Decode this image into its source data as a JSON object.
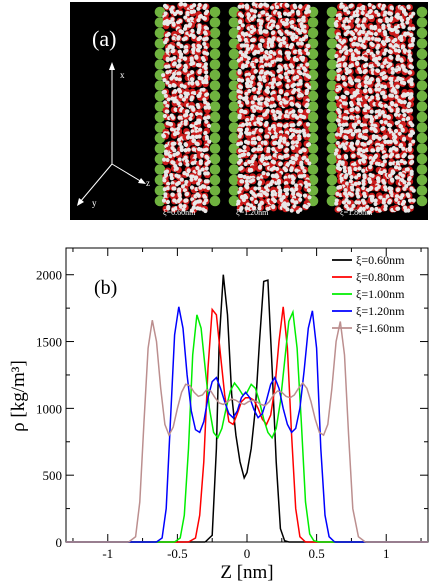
{
  "panel_a": {
    "panel_label": "(a)",
    "axes": {
      "x": "x",
      "y": "y",
      "z": "z"
    },
    "snapshots": [
      {
        "caption": "ξ=0.60nm"
      },
      {
        "caption": "ξ=1.20nm"
      },
      {
        "caption": "ξ=1.80nm"
      }
    ]
  },
  "colors": {
    "wall_atom": "#6fb23f",
    "oxygen": "#cc1b1b",
    "hydrogen": "#e8e8e8",
    "background_a": "#000000"
  },
  "chart_data": {
    "type": "line",
    "panel_label": "(b)",
    "xlabel": "Z [nm]",
    "ylabel": "ρ  [kg/m³]",
    "xlim": [
      -1.3,
      1.3
    ],
    "ylim": [
      0,
      2200
    ],
    "xticks": [
      -1,
      -0.5,
      0,
      0.5,
      1
    ],
    "xtick_labels": [
      "-1",
      "-0.5",
      "0",
      "0.5",
      "1"
    ],
    "yticks": [
      0,
      500,
      1000,
      1500,
      2000
    ],
    "ytick_labels": [
      "0",
      "500",
      "1000",
      "1500",
      "2000"
    ],
    "legend": "top-right",
    "series": [
      {
        "name": "ξ=0.60nm",
        "color": "#000000",
        "x": [
          -0.3,
          -0.25,
          -0.22,
          -0.2,
          -0.17,
          -0.14,
          -0.11,
          -0.08,
          -0.05,
          -0.02,
          0.0,
          0.03,
          0.06,
          0.09,
          0.12,
          0.15,
          0.18,
          0.21,
          0.24,
          0.27,
          0.3
        ],
        "y": [
          0,
          50,
          700,
          1500,
          2000,
          1700,
          1100,
          800,
          600,
          480,
          520,
          700,
          1000,
          1500,
          1950,
          1960,
          1300,
          600,
          100,
          10,
          0
        ]
      },
      {
        "name": "ξ=0.80nm",
        "color": "#ff0000",
        "x": [
          -0.42,
          -0.37,
          -0.34,
          -0.31,
          -0.28,
          -0.25,
          -0.22,
          -0.19,
          -0.16,
          -0.13,
          -0.1,
          -0.07,
          -0.04,
          -0.01,
          0.02,
          0.05,
          0.08,
          0.11,
          0.14,
          0.17,
          0.2,
          0.23,
          0.26,
          0.29,
          0.32,
          0.35,
          0.38,
          0.42
        ],
        "y": [
          0,
          30,
          200,
          600,
          1300,
          1740,
          1700,
          1400,
          1100,
          900,
          880,
          960,
          1050,
          1080,
          1080,
          1060,
          1000,
          920,
          880,
          950,
          1150,
          1500,
          1760,
          1450,
          800,
          250,
          40,
          0
        ]
      },
      {
        "name": "ξ=1.00nm",
        "color": "#00ee00",
        "x": [
          -0.52,
          -0.48,
          -0.45,
          -0.42,
          -0.39,
          -0.36,
          -0.33,
          -0.3,
          -0.27,
          -0.24,
          -0.21,
          -0.18,
          -0.15,
          -0.12,
          -0.09,
          -0.06,
          -0.03,
          0.0,
          0.03,
          0.06,
          0.09,
          0.12,
          0.15,
          0.18,
          0.21,
          0.24,
          0.27,
          0.3,
          0.33,
          0.36,
          0.39,
          0.42,
          0.45,
          0.48,
          0.52
        ],
        "y": [
          0,
          30,
          200,
          700,
          1400,
          1700,
          1600,
          1300,
          1000,
          820,
          780,
          850,
          1000,
          1130,
          1190,
          1150,
          1100,
          1120,
          1180,
          1150,
          1050,
          920,
          820,
          780,
          850,
          1050,
          1350,
          1650,
          1720,
          1450,
          900,
          300,
          60,
          10,
          0
        ]
      },
      {
        "name": "ξ=1.20nm",
        "color": "#0000ff",
        "x": [
          -0.65,
          -0.61,
          -0.58,
          -0.55,
          -0.52,
          -0.49,
          -0.46,
          -0.43,
          -0.4,
          -0.37,
          -0.34,
          -0.31,
          -0.28,
          -0.25,
          -0.22,
          -0.19,
          -0.16,
          -0.13,
          -0.1,
          -0.07,
          -0.04,
          -0.01,
          0.02,
          0.05,
          0.08,
          0.11,
          0.14,
          0.17,
          0.2,
          0.23,
          0.26,
          0.29,
          0.32,
          0.35,
          0.38,
          0.41,
          0.44,
          0.47,
          0.5,
          0.53,
          0.56,
          0.59,
          0.63
        ],
        "y": [
          0,
          30,
          250,
          900,
          1550,
          1760,
          1600,
          1250,
          980,
          840,
          820,
          900,
          1080,
          1200,
          1230,
          1150,
          1050,
          960,
          930,
          980,
          1080,
          1120,
          1080,
          990,
          930,
          960,
          1060,
          1180,
          1230,
          1150,
          1000,
          880,
          820,
          850,
          1000,
          1280,
          1600,
          1730,
          1450,
          700,
          200,
          40,
          0
        ]
      },
      {
        "name": "ξ=1.60nm",
        "color": "#bc8f8f",
        "x": [
          -0.85,
          -0.8,
          -0.77,
          -0.74,
          -0.71,
          -0.68,
          -0.65,
          -0.62,
          -0.59,
          -0.56,
          -0.53,
          -0.5,
          -0.47,
          -0.44,
          -0.41,
          -0.38,
          -0.35,
          -0.32,
          -0.29,
          -0.26,
          -0.23,
          -0.2,
          -0.17,
          -0.14,
          -0.11,
          -0.08,
          -0.05,
          -0.02,
          0.01,
          0.04,
          0.07,
          0.1,
          0.13,
          0.16,
          0.19,
          0.22,
          0.25,
          0.28,
          0.31,
          0.34,
          0.37,
          0.4,
          0.43,
          0.46,
          0.49,
          0.52,
          0.55,
          0.58,
          0.61,
          0.64,
          0.67,
          0.7,
          0.73,
          0.76,
          0.8,
          0.85
        ],
        "y": [
          0,
          40,
          300,
          900,
          1450,
          1660,
          1500,
          1150,
          880,
          800,
          860,
          1000,
          1120,
          1180,
          1170,
          1120,
          1090,
          1100,
          1140,
          1130,
          1080,
          1040,
          1030,
          1050,
          1070,
          1060,
          1040,
          1030,
          1050,
          1060,
          1050,
          1030,
          1020,
          1050,
          1100,
          1130,
          1120,
          1090,
          1080,
          1100,
          1150,
          1190,
          1150,
          1050,
          920,
          820,
          800,
          880,
          1150,
          1500,
          1650,
          1400,
          800,
          250,
          40,
          0
        ]
      }
    ]
  }
}
